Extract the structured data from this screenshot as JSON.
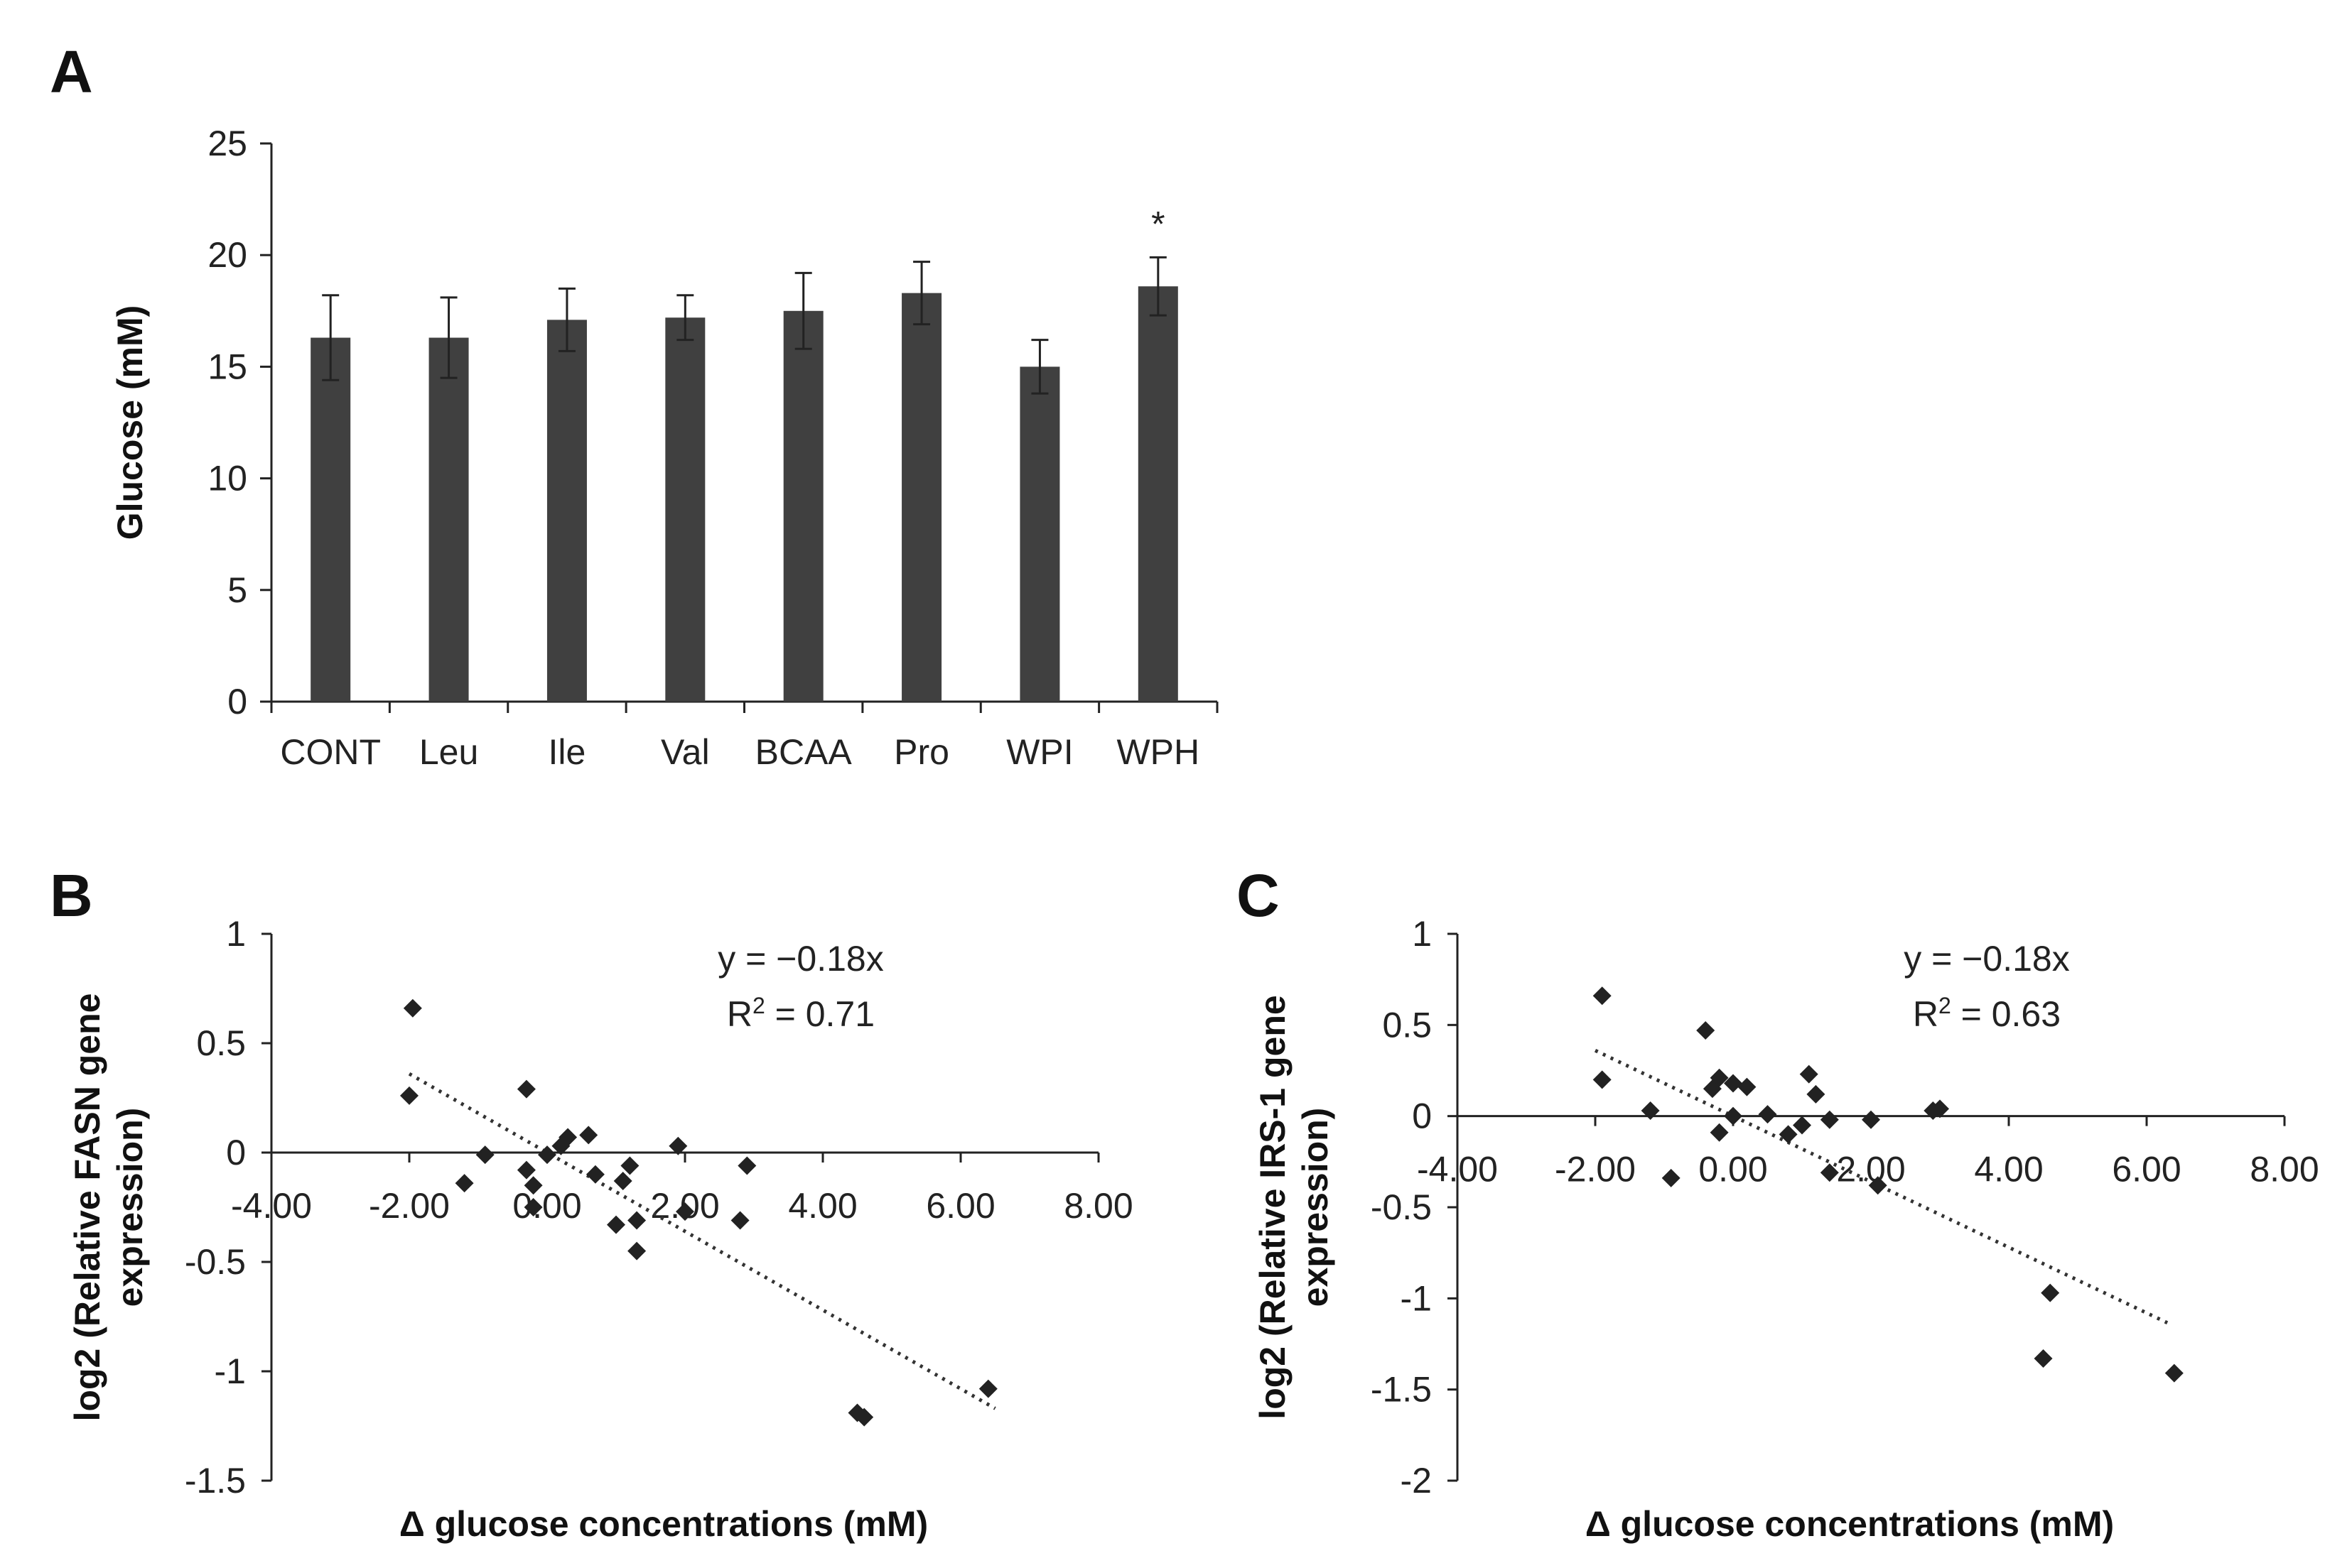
{
  "chart_data": [
    {
      "panel": "A",
      "type": "bar",
      "ylabel": "Glucose  (mM)",
      "xlabel": "",
      "ylim": [
        0,
        25
      ],
      "yticks": [
        0,
        5,
        10,
        15,
        20,
        25
      ],
      "categories": [
        "CONT",
        "Leu",
        "Ile",
        "Val",
        "BCAA",
        "Pro",
        "WPI",
        "WPH"
      ],
      "values": [
        16.3,
        16.3,
        17.1,
        17.2,
        17.5,
        18.3,
        15.0,
        18.6
      ],
      "errors": [
        1.9,
        1.8,
        1.4,
        1.0,
        1.7,
        1.4,
        1.2,
        1.3
      ],
      "annotations": [
        {
          "category": "WPH",
          "text": "*"
        }
      ],
      "bar_color": "#404040"
    },
    {
      "panel": "B",
      "type": "scatter",
      "xlabel": "Δ glucose concentrations (mM)",
      "ylabel": [
        "log2 (Relative FASN gene",
        "expression)"
      ],
      "xlim": [
        -4,
        8
      ],
      "ylim": [
        -1.5,
        1
      ],
      "xticks": [
        "-4.00",
        "-2.00",
        "0.00",
        "2.00",
        "4.00",
        "6.00",
        "8.00"
      ],
      "yticks": [
        "1",
        "0.5",
        "0",
        "-0.5",
        "-1",
        "-1.5"
      ],
      "trendline": {
        "equation": "y = −0.18x",
        "r2_prefix": "R",
        "r2_sup": "2",
        "r2_suffix": " = 0.71",
        "slope": -0.18,
        "intercept": 0,
        "x_range": [
          -2.0,
          6.5
        ]
      },
      "points": [
        [
          -1.95,
          0.66
        ],
        [
          -2.0,
          0.26
        ],
        [
          -1.2,
          -0.14
        ],
        [
          -0.9,
          -0.01
        ],
        [
          -0.3,
          0.29
        ],
        [
          -0.3,
          -0.08
        ],
        [
          -0.2,
          -0.15
        ],
        [
          -0.2,
          -0.25
        ],
        [
          0.0,
          -0.01
        ],
        [
          0.2,
          0.03
        ],
        [
          0.3,
          0.07
        ],
        [
          0.6,
          0.08
        ],
        [
          0.7,
          -0.1
        ],
        [
          1.0,
          -0.33
        ],
        [
          1.1,
          -0.13
        ],
        [
          1.2,
          -0.06
        ],
        [
          1.3,
          -0.31
        ],
        [
          1.3,
          -0.45
        ],
        [
          1.9,
          0.03
        ],
        [
          2.0,
          -0.27
        ],
        [
          2.8,
          -0.31
        ],
        [
          2.9,
          -0.06
        ],
        [
          4.5,
          -1.19
        ],
        [
          4.6,
          -1.21
        ],
        [
          6.4,
          -1.08
        ]
      ]
    },
    {
      "panel": "C",
      "type": "scatter",
      "xlabel": "Δ glucose concentrations (mM)",
      "ylabel": [
        "log2 (Relative IRS-1 gene",
        "expression)"
      ],
      "xlim": [
        -4,
        8
      ],
      "ylim": [
        -2,
        1
      ],
      "xticks": [
        "-4.00",
        "-2.00",
        "0.00",
        "2.00",
        "4.00",
        "6.00",
        "8.00"
      ],
      "yticks": [
        "1",
        "0.5",
        "0",
        "-0.5",
        "-1",
        "-1.5",
        "-2"
      ],
      "trendline": {
        "equation": "y = −0.18x",
        "r2_prefix": "R",
        "r2_sup": "2",
        "r2_suffix": " = 0.63",
        "slope": -0.18,
        "intercept": 0,
        "x_range": [
          -2.0,
          6.3
        ]
      },
      "points": [
        [
          -1.9,
          0.66
        ],
        [
          -1.9,
          0.2
        ],
        [
          -1.2,
          0.03
        ],
        [
          -0.9,
          -0.34
        ],
        [
          -0.4,
          0.47
        ],
        [
          -0.3,
          0.15
        ],
        [
          -0.2,
          0.21
        ],
        [
          -0.2,
          -0.09
        ],
        [
          0.0,
          0.18
        ],
        [
          0.0,
          0.0
        ],
        [
          0.2,
          0.16
        ],
        [
          0.5,
          0.01
        ],
        [
          0.8,
          -0.1
        ],
        [
          1.0,
          -0.05
        ],
        [
          1.1,
          0.23
        ],
        [
          1.2,
          0.12
        ],
        [
          1.4,
          -0.02
        ],
        [
          1.4,
          -0.31
        ],
        [
          2.0,
          -0.02
        ],
        [
          2.1,
          -0.38
        ],
        [
          2.9,
          0.03
        ],
        [
          3.0,
          0.04
        ],
        [
          4.5,
          -1.33
        ],
        [
          4.6,
          -0.97
        ],
        [
          6.4,
          -1.41
        ]
      ]
    }
  ]
}
